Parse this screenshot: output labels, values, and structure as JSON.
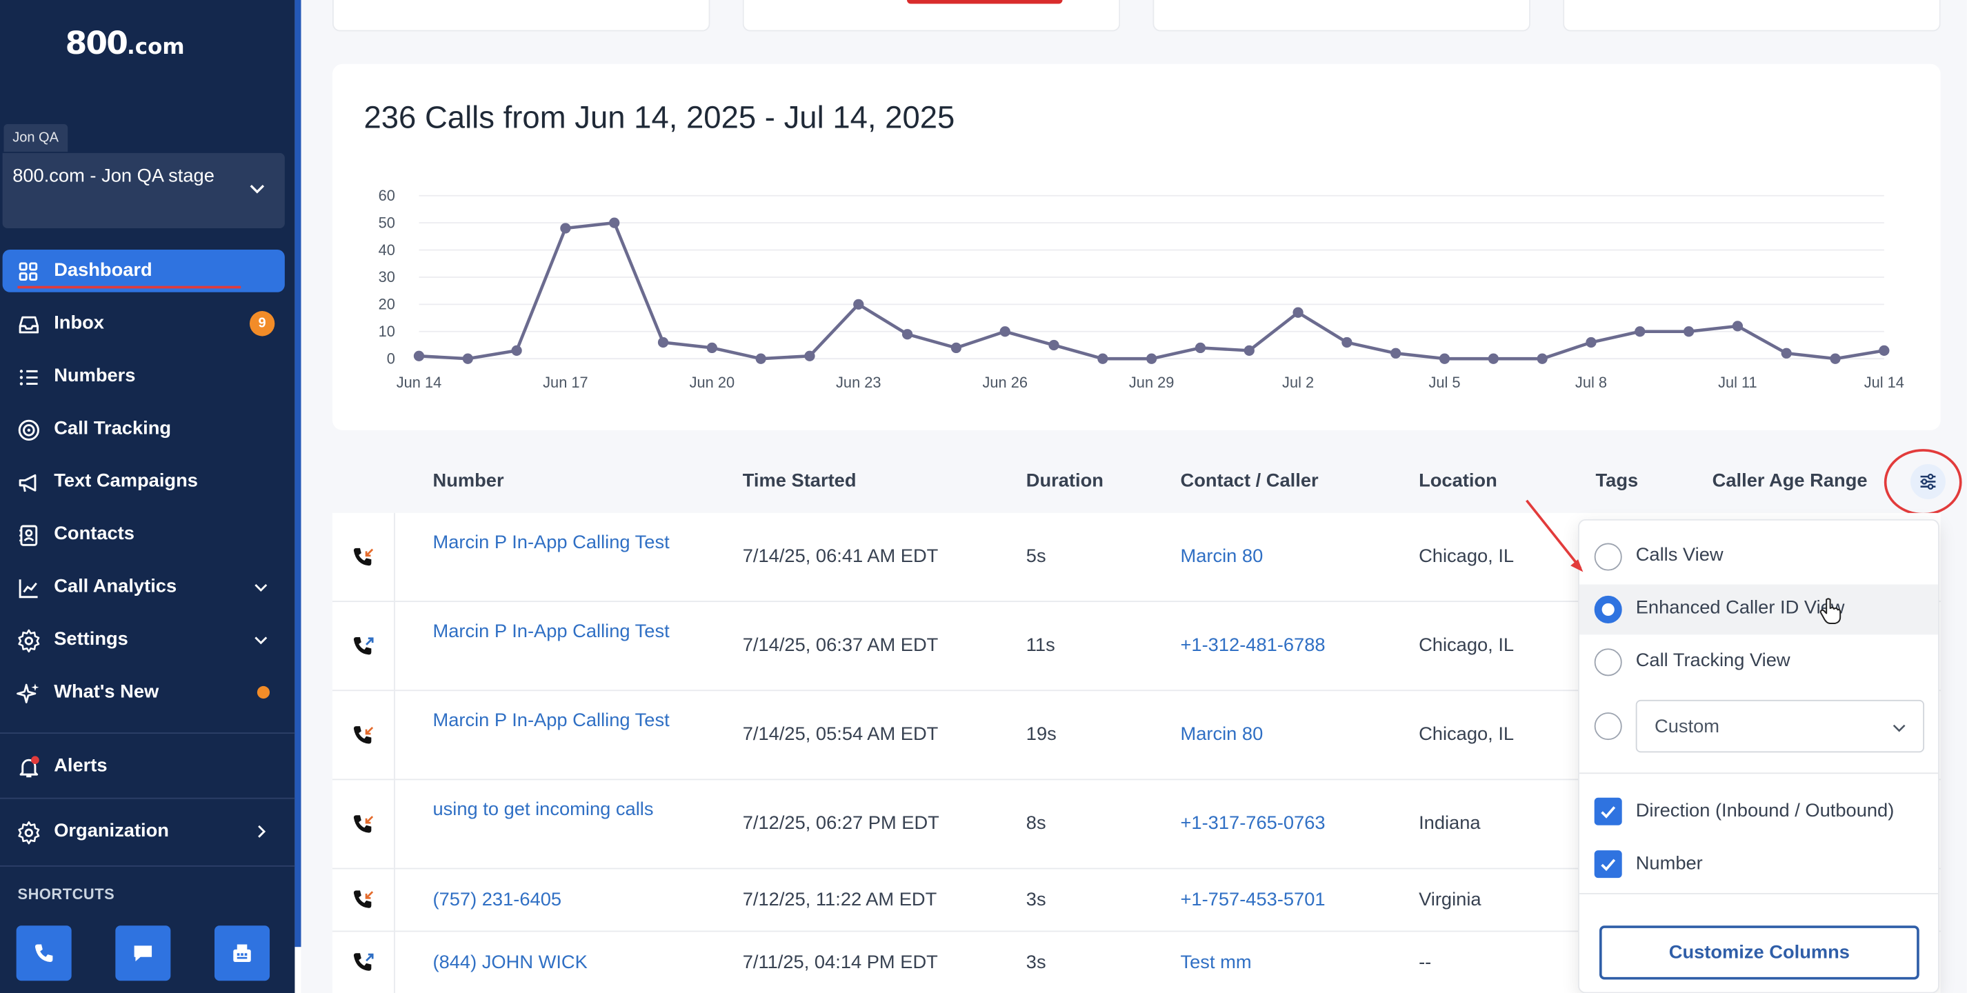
{
  "brand": {
    "logo_main": "800",
    "logo_suffix": ".com"
  },
  "account": {
    "tag": "Jon QA",
    "name": "800.com - Jon QA stage"
  },
  "nav": {
    "dashboard": "Dashboard",
    "inbox": "Inbox",
    "inbox_badge": "9",
    "numbers": "Numbers",
    "call_tracking": "Call Tracking",
    "text_campaigns": "Text Campaigns",
    "contacts": "Contacts",
    "call_analytics": "Call Analytics",
    "settings": "Settings",
    "whats_new": "What's New",
    "alerts": "Alerts",
    "organization": "Organization",
    "shortcuts": "SHORTCUTS"
  },
  "colors": {
    "sidebar": "#14284d",
    "accent": "#2f73e0",
    "badge": "#f28c28",
    "highlight_red": "#e23b3b",
    "link": "#2f6fc4",
    "chart_line": "#6b6b8f"
  },
  "chart_data": {
    "type": "line",
    "title": "236 Calls from Jun 14, 2025 - Jul 14, 2025",
    "x": [
      "Jun 14",
      "Jun 15",
      "Jun 16",
      "Jun 17",
      "Jun 18",
      "Jun 19",
      "Jun 20",
      "Jun 21",
      "Jun 22",
      "Jun 23",
      "Jun 24",
      "Jun 25",
      "Jun 26",
      "Jun 27",
      "Jun 28",
      "Jun 29",
      "Jun 30",
      "Jul 1",
      "Jul 2",
      "Jul 3",
      "Jul 4",
      "Jul 5",
      "Jul 6",
      "Jul 7",
      "Jul 8",
      "Jul 9",
      "Jul 10",
      "Jul 11",
      "Jul 12",
      "Jul 13",
      "Jul 14"
    ],
    "values": [
      1,
      0,
      3,
      48,
      50,
      6,
      4,
      0,
      1,
      20,
      9,
      4,
      10,
      5,
      0,
      0,
      4,
      3,
      17,
      6,
      2,
      0,
      0,
      0,
      6,
      10,
      10,
      12,
      2,
      0,
      3
    ],
    "x_tick_labels": [
      "Jun 14",
      "Jun 17",
      "Jun 20",
      "Jun 23",
      "Jun 26",
      "Jun 29",
      "Jul 2",
      "Jul 5",
      "Jul 8",
      "Jul 11",
      "Jul 14"
    ],
    "y_ticks": [
      0,
      10,
      20,
      30,
      40,
      50,
      60
    ],
    "ylim": [
      0,
      60
    ],
    "grid": true,
    "legend": false
  },
  "table": {
    "headers": {
      "number": "Number",
      "time_started": "Time Started",
      "duration": "Duration",
      "contact": "Contact / Caller",
      "location": "Location",
      "tags": "Tags",
      "caller_age": "Caller Age Range"
    },
    "rows": [
      {
        "number": "Marcin P In-App Calling Test",
        "time": "7/14/25, 06:41 AM EDT",
        "duration": "5s",
        "contact": "Marcin 80",
        "location": "Chicago, IL",
        "direction": "inbound"
      },
      {
        "number": "Marcin P In-App Calling Test",
        "time": "7/14/25, 06:37 AM EDT",
        "duration": "11s",
        "contact": "+1-312-481-6788",
        "location": "Chicago, IL",
        "direction": "outbound"
      },
      {
        "number": "Marcin P In-App Calling Test",
        "time": "7/14/25, 05:54 AM EDT",
        "duration": "19s",
        "contact": "Marcin 80",
        "location": "Chicago, IL",
        "direction": "inbound"
      },
      {
        "number": "using to get incoming calls",
        "time": "7/12/25, 06:27 PM EDT",
        "duration": "8s",
        "contact": "+1-317-765-0763",
        "location": "Indiana",
        "direction": "inbound"
      },
      {
        "number": "(757) 231-6405",
        "time": "7/12/25, 11:22 AM EDT",
        "duration": "3s",
        "contact": "+1-757-453-5701",
        "location": "Virginia",
        "direction": "inbound"
      },
      {
        "number": "(844) JOHN WICK",
        "time": "7/11/25, 04:14 PM EDT",
        "duration": "3s",
        "contact": "Test mm",
        "location": "--",
        "direction": "outbound"
      }
    ]
  },
  "view_panel": {
    "options": [
      "Calls View",
      "Enhanced Caller ID View",
      "Call Tracking View"
    ],
    "selected": "Enhanced Caller ID View",
    "custom_value": "Custom",
    "checkboxes": [
      "Direction (Inbound / Outbound)",
      "Number"
    ],
    "button": "Customize Columns"
  }
}
